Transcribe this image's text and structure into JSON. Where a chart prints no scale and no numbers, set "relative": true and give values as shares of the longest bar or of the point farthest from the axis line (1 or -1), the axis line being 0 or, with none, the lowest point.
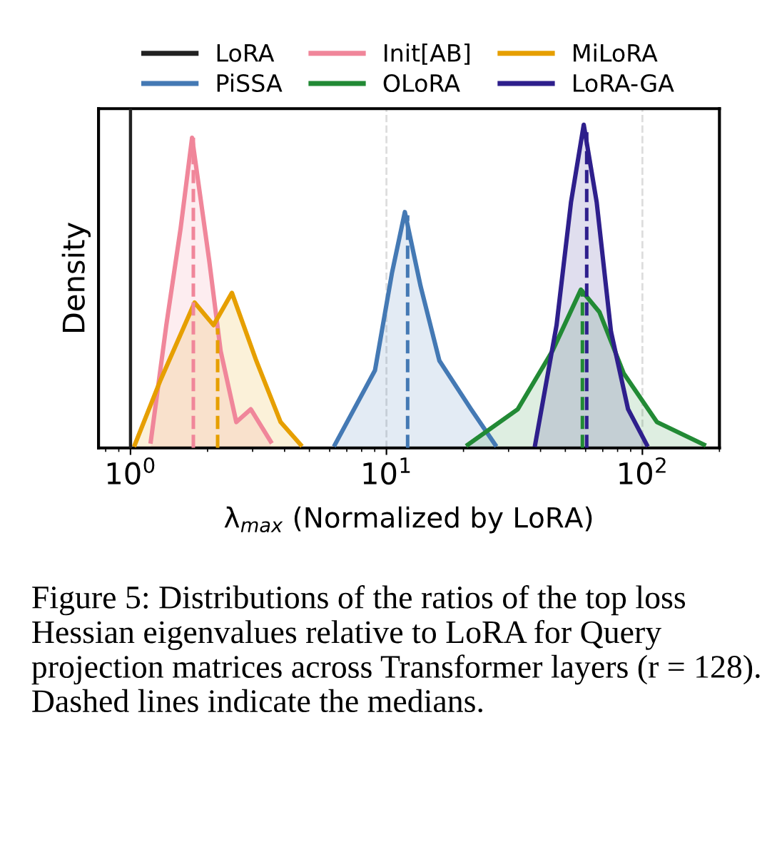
{
  "chart_data": {
    "type": "area",
    "relative": true,
    "log": "x",
    "grid": "x",
    "legend": "top",
    "ylabel": "Density",
    "xlabel": "λ$_{max}$ (Normalized by LoRA)",
    "xlim": [
      0.75,
      200
    ],
    "xticks": [
      {
        "value": 1,
        "label": "10$^{0}$"
      },
      {
        "value": 10,
        "label": "10$^{1}$"
      },
      {
        "value": 100,
        "label": "10$^{2}$"
      }
    ],
    "ref_lines": [
      {
        "axis": "x",
        "value": 1,
        "label": "LoRA",
        "color": "#222222",
        "line_style": "solid"
      }
    ],
    "series": [
      {
        "name": "Init[AB]",
        "color": "#f0869a",
        "x": [
          1.2,
          1.38,
          1.57,
          1.74,
          2.03,
          2.25,
          2.59,
          2.95,
          3.53
        ],
        "values": [
          0.02,
          0.38,
          0.68,
          0.96,
          0.58,
          0.3,
          0.08,
          0.12,
          0.02
        ]
      },
      {
        "name": "MiLoRA",
        "color": "#e69f00",
        "x": [
          1.04,
          1.31,
          1.78,
          2.11,
          2.49,
          3.1,
          3.86,
          4.62
        ],
        "values": [
          0.01,
          0.21,
          0.45,
          0.38,
          0.48,
          0.27,
          0.08,
          0.01
        ]
      },
      {
        "name": "PiSSA",
        "color": "#4479b4",
        "x": [
          6.29,
          9.02,
          10.5,
          11.8,
          13.6,
          16.1,
          21.4,
          26.6
        ],
        "values": [
          0.01,
          0.24,
          0.54,
          0.73,
          0.5,
          0.27,
          0.12,
          0.01
        ]
      },
      {
        "name": "OLoRA",
        "color": "#228a35",
        "x": [
          20.8,
          32.6,
          44.5,
          57.5,
          68.0,
          84.6,
          114,
          174
        ],
        "values": [
          0.01,
          0.12,
          0.3,
          0.49,
          0.42,
          0.23,
          0.08,
          0.01
        ]
      },
      {
        "name": "LoRA-GA",
        "color": "#2e1f8c",
        "x": [
          38.1,
          46.2,
          52.6,
          59.0,
          66.3,
          75.4,
          87.9,
          104
        ],
        "values": [
          0.01,
          0.38,
          0.76,
          1.0,
          0.76,
          0.36,
          0.12,
          0.01
        ]
      },
      {
        "type": "line",
        "line_style": "dashed",
        "color": "#f0869a",
        "x": [
          1.76,
          1.76
        ],
        "values": [
          0,
          0.96
        ]
      },
      {
        "type": "line",
        "line_style": "dashed",
        "color": "#e69f00",
        "x": [
          2.19,
          2.19
        ],
        "values": [
          0,
          0.37
        ]
      },
      {
        "type": "line",
        "line_style": "dashed",
        "color": "#4479b4",
        "x": [
          12.1,
          12.1
        ],
        "values": [
          0,
          0.72
        ]
      },
      {
        "type": "line",
        "line_style": "dashed",
        "color": "#228a35",
        "x": [
          58.3,
          58.3
        ],
        "values": [
          0,
          0.49
        ]
      },
      {
        "type": "line",
        "line_style": "dashed",
        "color": "#2e1f8c",
        "x": [
          60.6,
          60.6
        ],
        "values": [
          0,
          0.98
        ]
      }
    ],
    "annotations": [
      "Figure 5: Distributions of the ratios of the top loss Hessian eigenvalues relative to LoRA for Query projection matrices across Transformer layers (r = 128). Dashed lines indicate the medians."
    ]
  }
}
